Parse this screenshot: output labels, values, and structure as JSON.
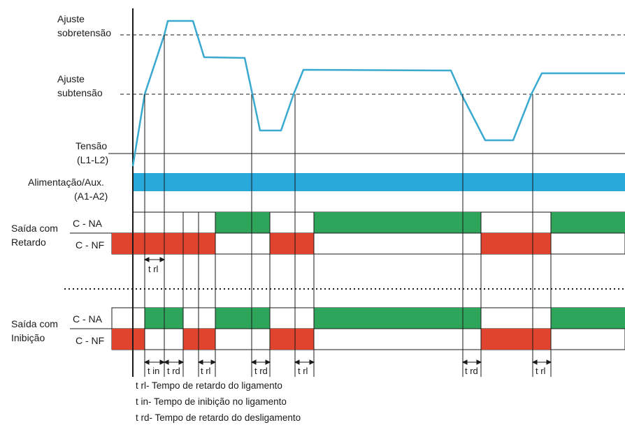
{
  "labels": {
    "overvoltage": [
      "Ajuste",
      "sobretensão"
    ],
    "undervoltage": [
      "Ajuste",
      "subtensão"
    ],
    "voltage": [
      "Tensão",
      "(L1-L2)"
    ],
    "supply": [
      "Alimentação/Aux.",
      "(A1-A2)"
    ],
    "delay_group": [
      "Saída com",
      "Retardo"
    ],
    "inhibit_group": [
      "Saída com",
      "Inibição"
    ],
    "contact_no": "C - NA",
    "contact_nc": "C - NF"
  },
  "interval_labels": {
    "delay": [
      "t rl"
    ],
    "inhibit": [
      "t in",
      "t rd",
      "t rl",
      "t rd",
      "t rl",
      "t rd",
      "t rl"
    ]
  },
  "legend": [
    "t rl- Tempo de retardo do ligamento",
    "t in- Tempo de inibição no ligamento",
    "t rd- Tempo de retardo do desligamento"
  ],
  "colors": {
    "voltage_curve": "#3aa9d0",
    "supply_bar": "#29a8da",
    "contact_on_no": "#2ea55a",
    "contact_on_nc": "#e0442f",
    "line": "#1a1a1a"
  }
}
